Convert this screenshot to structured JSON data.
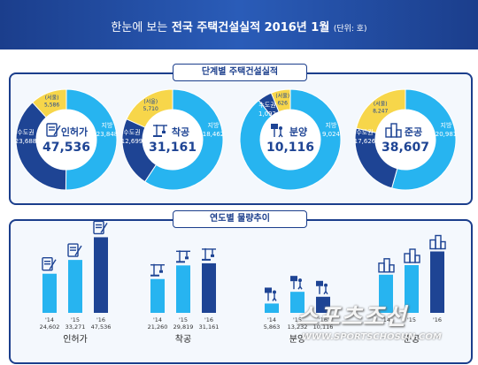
{
  "header": {
    "title_thin": "한눈에 보는",
    "title_bold": "전국 주택건설실적 2016년 1월",
    "unit": "(단위: 호)"
  },
  "section1": {
    "title": "단계별 주택건설실적"
  },
  "section2": {
    "title": "연도별 물량추이"
  },
  "colors": {
    "dark": "#1e4494",
    "light": "#27b4f0",
    "seoul": "#f7d64a",
    "navy": "#1b3e8c"
  },
  "icons": [
    "permit-document-icon",
    "crane-icon",
    "construction-worker-icon",
    "buildings-icon"
  ],
  "chart_data": [
    {
      "type": "pie",
      "name": "인허가",
      "total": "47,536",
      "slices": [
        {
          "label": "지방",
          "value": 23848,
          "text": "23,848"
        },
        {
          "label": "수도권",
          "value": 23688,
          "text": "23,688"
        }
      ],
      "inner": {
        "label": "(서울)",
        "value": 5586,
        "text": "5,586"
      }
    },
    {
      "type": "pie",
      "name": "착공",
      "total": "31,161",
      "slices": [
        {
          "label": "지방",
          "value": 18462,
          "text": "18,462"
        },
        {
          "label": "수도권",
          "value": 12699,
          "text": "12,699"
        }
      ],
      "inner": {
        "label": "(서울)",
        "value": 5710,
        "text": "5,710"
      }
    },
    {
      "type": "pie",
      "name": "분양",
      "total": "10,116",
      "slices": [
        {
          "label": "지방",
          "value": 9024,
          "text": "9,024"
        },
        {
          "label": "수도권",
          "value": 1092,
          "text": "1,092"
        }
      ],
      "inner": {
        "label": "(서울)",
        "value": 626,
        "text": "626"
      }
    },
    {
      "type": "pie",
      "name": "준공",
      "total": "38,607",
      "slices": [
        {
          "label": "지방",
          "value": 20981,
          "text": "20,981"
        },
        {
          "label": "수도권",
          "value": 17626,
          "text": "17,626"
        }
      ],
      "inner": {
        "label": "(서울)",
        "value": 8247,
        "text": "8,247"
      }
    },
    {
      "type": "bar",
      "name": "인허가",
      "categories": [
        "'14",
        "'15",
        "'16"
      ],
      "values": [
        24602,
        33271,
        47536
      ],
      "value_labels": [
        "24,602",
        "33,271",
        "47,536"
      ]
    },
    {
      "type": "bar",
      "name": "착공",
      "categories": [
        "'14",
        "'15",
        "'16"
      ],
      "values": [
        21260,
        29819,
        31161
      ],
      "value_labels": [
        "21,260",
        "29,819",
        "31,161"
      ]
    },
    {
      "type": "bar",
      "name": "분양",
      "categories": [
        "'14",
        "'15",
        "'16"
      ],
      "values": [
        5863,
        13232,
        10116
      ],
      "value_labels": [
        "5,863",
        "13,232",
        "10,116"
      ]
    },
    {
      "type": "bar",
      "name": "준공",
      "categories": [
        "'14",
        "'15",
        "'16"
      ],
      "values": [
        24000,
        30000,
        38607
      ],
      "value_labels": [
        "",
        "",
        ""
      ]
    }
  ],
  "watermark": {
    "main": "스포츠조선",
    "url": "WWW.SPORTSCHOSUN.COM"
  }
}
